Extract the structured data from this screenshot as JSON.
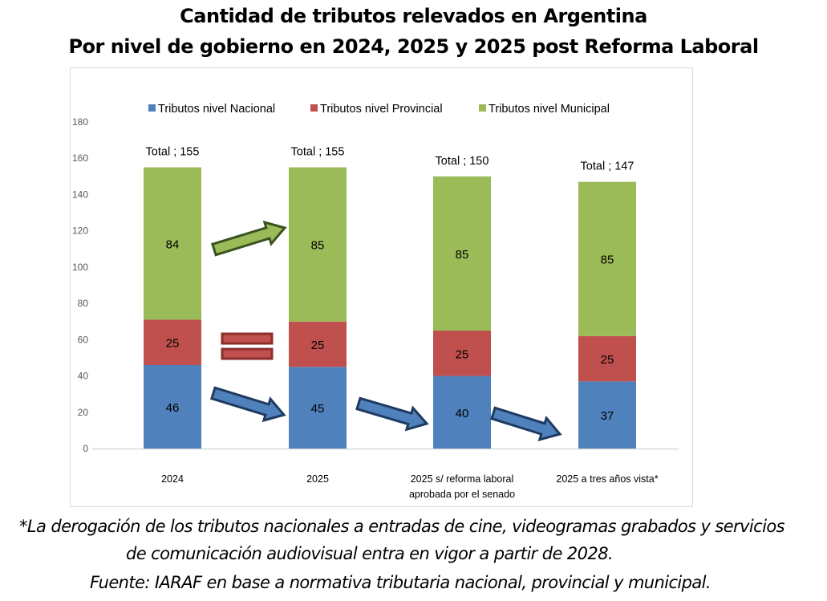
{
  "chart_data": {
    "type": "bar",
    "stacked": true,
    "title": "Cantidad de tributos relevados en Argentina",
    "subtitle": "Por nivel de gobierno en 2024, 2025 y 2025 post Reforma Laboral",
    "xlabel": "",
    "ylabel": "",
    "ylim": [
      0,
      180
    ],
    "yticks": [
      0,
      20,
      40,
      60,
      80,
      100,
      120,
      140,
      160,
      180
    ],
    "grid": false,
    "legend_position": "top",
    "categories": [
      [
        "2024"
      ],
      [
        "2025"
      ],
      [
        "2025 s/ reforma laboral",
        "aprobada por el senado"
      ],
      [
        "2025 a tres años vista*"
      ]
    ],
    "series": [
      {
        "name": "Tributos nivel Nacional",
        "color": "#4f81bd",
        "values": [
          46,
          45,
          40,
          37
        ]
      },
      {
        "name": "Tributos nivel Provincial",
        "color": "#c0504d",
        "values": [
          25,
          25,
          25,
          25
        ]
      },
      {
        "name": "Tributos nivel Municipal",
        "color": "#9bbb59",
        "values": [
          84,
          85,
          85,
          85
        ]
      }
    ],
    "totals": [
      155,
      155,
      150,
      147
    ],
    "total_label_prefix": "Total ; ",
    "annotations": [
      {
        "type": "arrow",
        "from_category": 0,
        "to_category": 1,
        "series": "Tributos nivel Municipal",
        "meaning": "increase",
        "color": "#9bbb59"
      },
      {
        "type": "equals",
        "from_category": 0,
        "to_category": 1,
        "series": "Tributos nivel Provincial",
        "meaning": "unchanged",
        "color": "#c0504d"
      },
      {
        "type": "arrow",
        "from_category": 0,
        "to_category": 1,
        "series": "Tributos nivel Nacional",
        "meaning": "decrease",
        "color": "#4f81bd"
      },
      {
        "type": "arrow",
        "from_category": 1,
        "to_category": 2,
        "series": "Tributos nivel Nacional",
        "meaning": "decrease",
        "color": "#4f81bd"
      },
      {
        "type": "arrow",
        "from_category": 2,
        "to_category": 3,
        "series": "Tributos nivel Nacional",
        "meaning": "decrease",
        "color": "#4f81bd"
      }
    ]
  },
  "footnotes": [
    "*La derogación de los tributos nacionales a entradas de cine, videogramas grabados y servicios",
    "de comunicación audiovisual entra en vigor a partir de 2028.",
    "Fuente: IARAF en base a normativa tributaria nacional, provincial y municipal."
  ]
}
